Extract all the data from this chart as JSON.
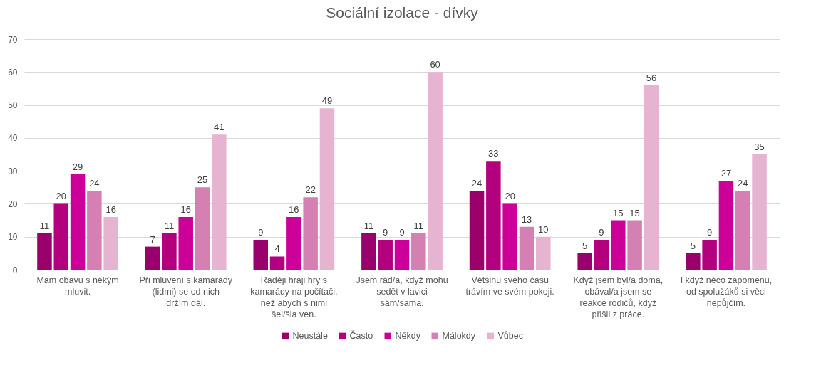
{
  "chart_data": {
    "type": "bar",
    "title": "Sociální izolace - dívky",
    "categories": [
      "Mám obavu s někým mluvit.",
      "Při mluvení s kamarády (lidmi) se od nich držím dál.",
      "Raději hraji hry s kamarády na počítači, než abych s nimi šel/šla ven.",
      "Jsem rád/a, když mohu sedět v lavici sám/sama.",
      "Většinu svého času trávím ve svém pokoji.",
      "Když jsem byl/a doma, obával/a jsem se reakce rodičů, když přišli z práce.",
      "I když něco zapomenu, od spolužáků si věci nepůjčím."
    ],
    "series": [
      {
        "name": "Neustále",
        "color": "#99006b",
        "values": [
          11,
          7,
          9,
          11,
          24,
          5,
          5
        ]
      },
      {
        "name": "Často",
        "color": "#b3007f",
        "values": [
          20,
          11,
          4,
          9,
          33,
          9,
          9
        ]
      },
      {
        "name": "Někdy",
        "color": "#cc0099",
        "values": [
          29,
          16,
          16,
          9,
          20,
          15,
          27
        ]
      },
      {
        "name": "Málokdy",
        "color": "#d580b3",
        "values": [
          24,
          25,
          22,
          11,
          13,
          15,
          24
        ]
      },
      {
        "name": "Vůbec",
        "color": "#e6b3d0",
        "values": [
          16,
          41,
          49,
          60,
          10,
          56,
          35
        ]
      }
    ],
    "ylim": [
      0,
      70
    ],
    "yticks": [
      0,
      10,
      20,
      30,
      40,
      50,
      60,
      70
    ],
    "grid": "y",
    "legend": "bottom",
    "data_labels": true
  }
}
